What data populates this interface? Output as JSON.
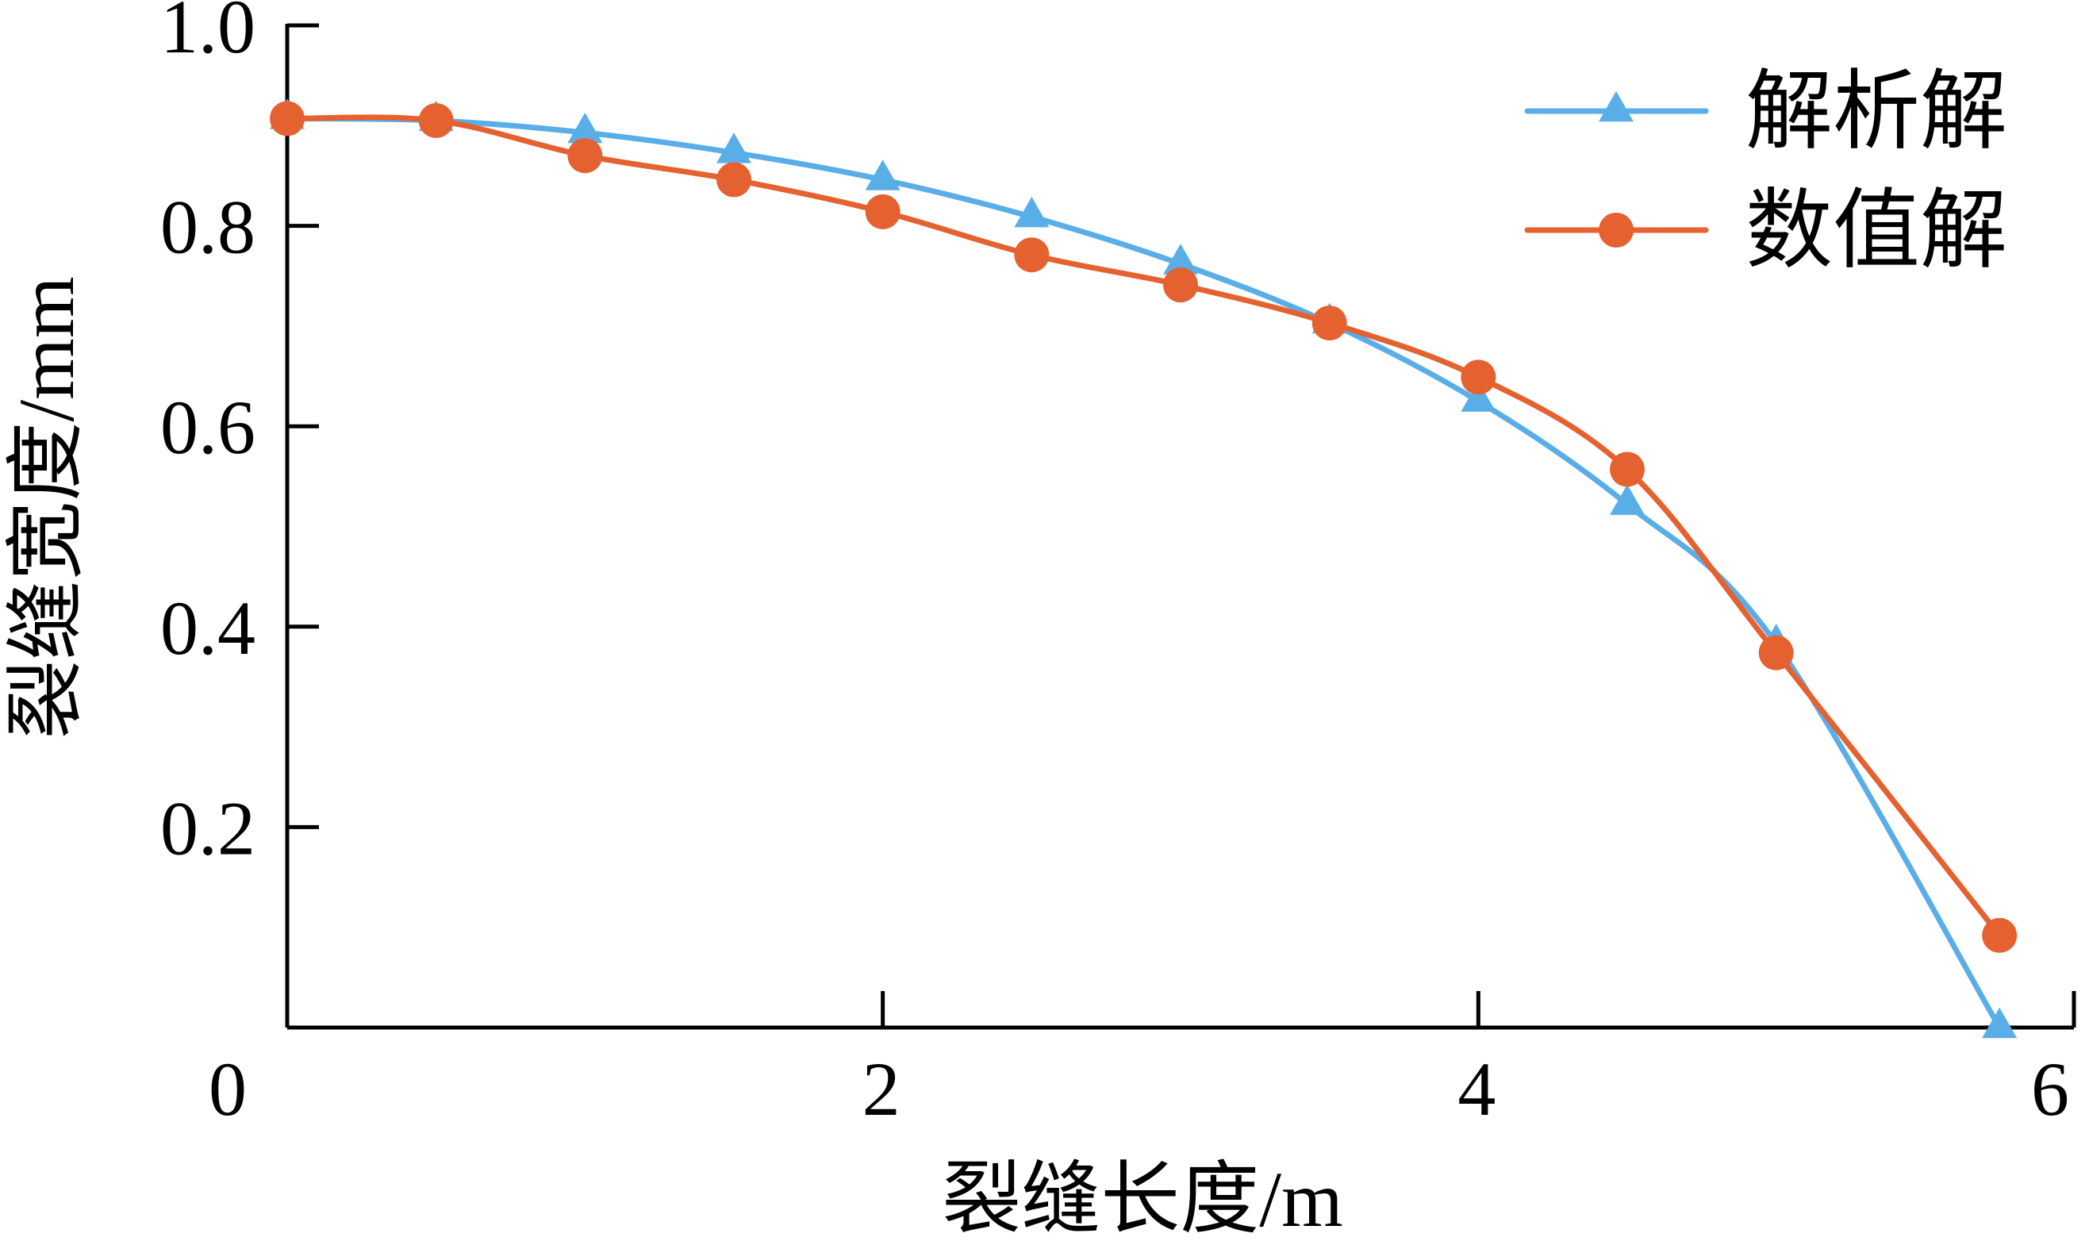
{
  "chart_data": {
    "type": "line",
    "title": "",
    "xlabel": "裂缝长度/m",
    "ylabel": "裂缝宽度/mm",
    "xlim": [
      0,
      6
    ],
    "ylim": [
      0,
      1.0
    ],
    "x_ticks": [
      {
        "value": 0,
        "label": "0"
      },
      {
        "value": 2,
        "label": "2"
      },
      {
        "value": 4,
        "label": "4"
      },
      {
        "value": 6,
        "label": "6"
      }
    ],
    "y_ticks": [
      {
        "value": 0.2,
        "label": "0.2"
      },
      {
        "value": 0.4,
        "label": "0.4"
      },
      {
        "value": 0.6,
        "label": "0.6"
      },
      {
        "value": 0.8,
        "label": "0.8"
      },
      {
        "value": 1.0,
        "label": "1.0"
      }
    ],
    "grid": false,
    "legend_position": "top-right",
    "series": [
      {
        "name": "解析解",
        "color": "#5aaee8",
        "marker": "triangle",
        "x": [
          0,
          0.5,
          1.0,
          1.5,
          2.0,
          2.5,
          3.0,
          3.5,
          4.0,
          4.5,
          5.0,
          5.75
        ],
        "y": [
          0.907,
          0.905,
          0.893,
          0.873,
          0.846,
          0.809,
          0.762,
          0.703,
          0.625,
          0.522,
          0.383,
          0.0
        ]
      },
      {
        "name": "数值解",
        "color": "#e5612f",
        "marker": "circle",
        "x": [
          0,
          0.5,
          1.0,
          1.5,
          2.0,
          2.5,
          3.0,
          3.5,
          4.0,
          4.5,
          5.0,
          5.75
        ],
        "y": [
          0.907,
          0.905,
          0.87,
          0.846,
          0.814,
          0.771,
          0.741,
          0.703,
          0.649,
          0.557,
          0.374,
          0.092
        ]
      }
    ]
  }
}
